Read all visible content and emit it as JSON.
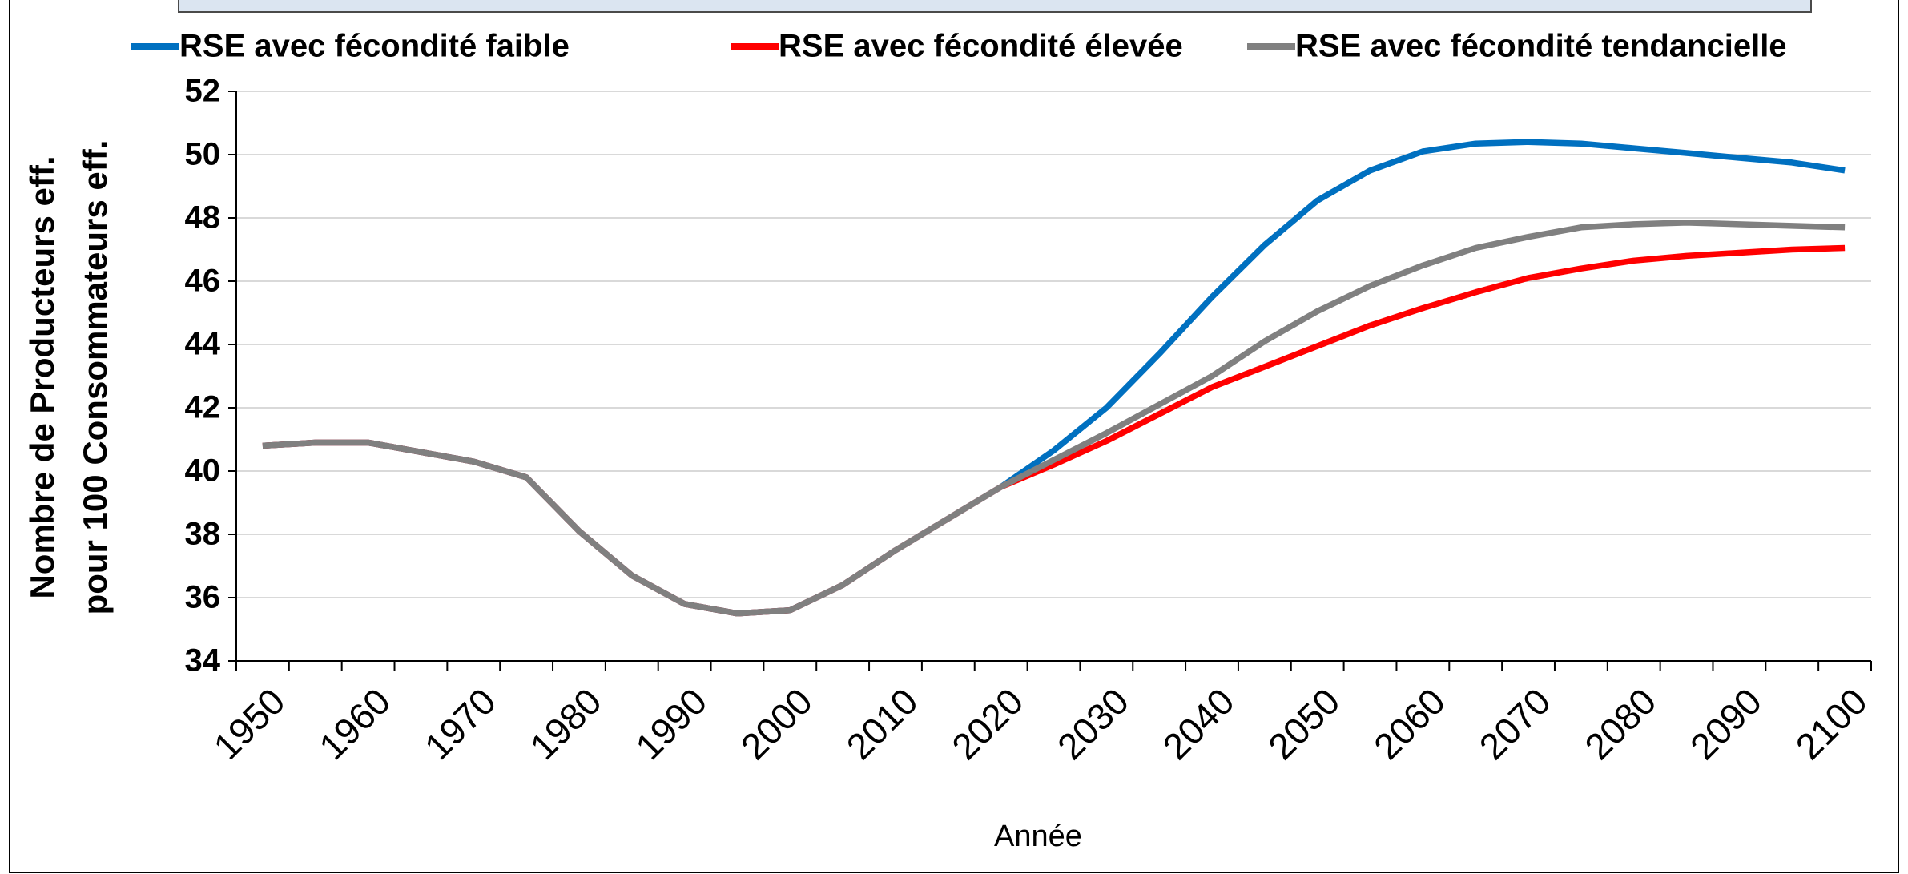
{
  "chart_data": {
    "type": "line",
    "xlabel": "Année",
    "ylabel": [
      "Nombre de Producteurs eff.",
      "pour 100 Consommateurs eff."
    ],
    "categories": [
      "1950",
      null,
      "1960",
      null,
      "1970",
      null,
      "1980",
      null,
      "1990",
      null,
      "2000",
      null,
      "2010",
      null,
      "2020",
      null,
      "2030",
      null,
      "2040",
      null,
      "2050",
      null,
      "2060",
      null,
      "2070",
      null,
      "2080",
      null,
      "2090",
      null,
      "2100"
    ],
    "series": [
      {
        "name": "RSE avec fécondité faible",
        "color": "#0070c0",
        "values": [
          40.8,
          40.9,
          40.9,
          40.6,
          40.3,
          39.8,
          38.1,
          36.7,
          35.8,
          35.5,
          35.6,
          36.4,
          37.5,
          38.5,
          39.5,
          40.65,
          42.0,
          43.7,
          45.5,
          47.15,
          48.55,
          49.5,
          50.1,
          50.35,
          50.4,
          50.35,
          50.2,
          50.05,
          49.9,
          49.75,
          49.5
        ]
      },
      {
        "name": "RSE avec fécondité élevée",
        "color": "#ff0000",
        "values": [
          40.8,
          40.9,
          40.9,
          40.6,
          40.3,
          39.8,
          38.1,
          36.7,
          35.8,
          35.5,
          35.6,
          36.4,
          37.5,
          38.5,
          39.5,
          40.2,
          40.95,
          41.8,
          42.65,
          43.3,
          43.95,
          44.6,
          45.15,
          45.65,
          46.1,
          46.4,
          46.65,
          46.8,
          46.9,
          47.0,
          47.05
        ]
      },
      {
        "name": "RSE avec fécondité tendancielle",
        "color": "#808080",
        "values": [
          40.8,
          40.9,
          40.9,
          40.6,
          40.3,
          39.8,
          38.1,
          36.7,
          35.8,
          35.5,
          35.6,
          36.4,
          37.5,
          38.5,
          39.5,
          40.35,
          41.2,
          42.1,
          43.0,
          44.1,
          45.05,
          45.85,
          46.5,
          47.05,
          47.4,
          47.7,
          47.8,
          47.85,
          47.8,
          47.75,
          47.7
        ]
      }
    ],
    "ylim": [
      34,
      52
    ],
    "yticks": [
      34,
      36,
      38,
      40,
      42,
      44,
      46,
      48,
      50,
      52
    ],
    "grid": true
  }
}
